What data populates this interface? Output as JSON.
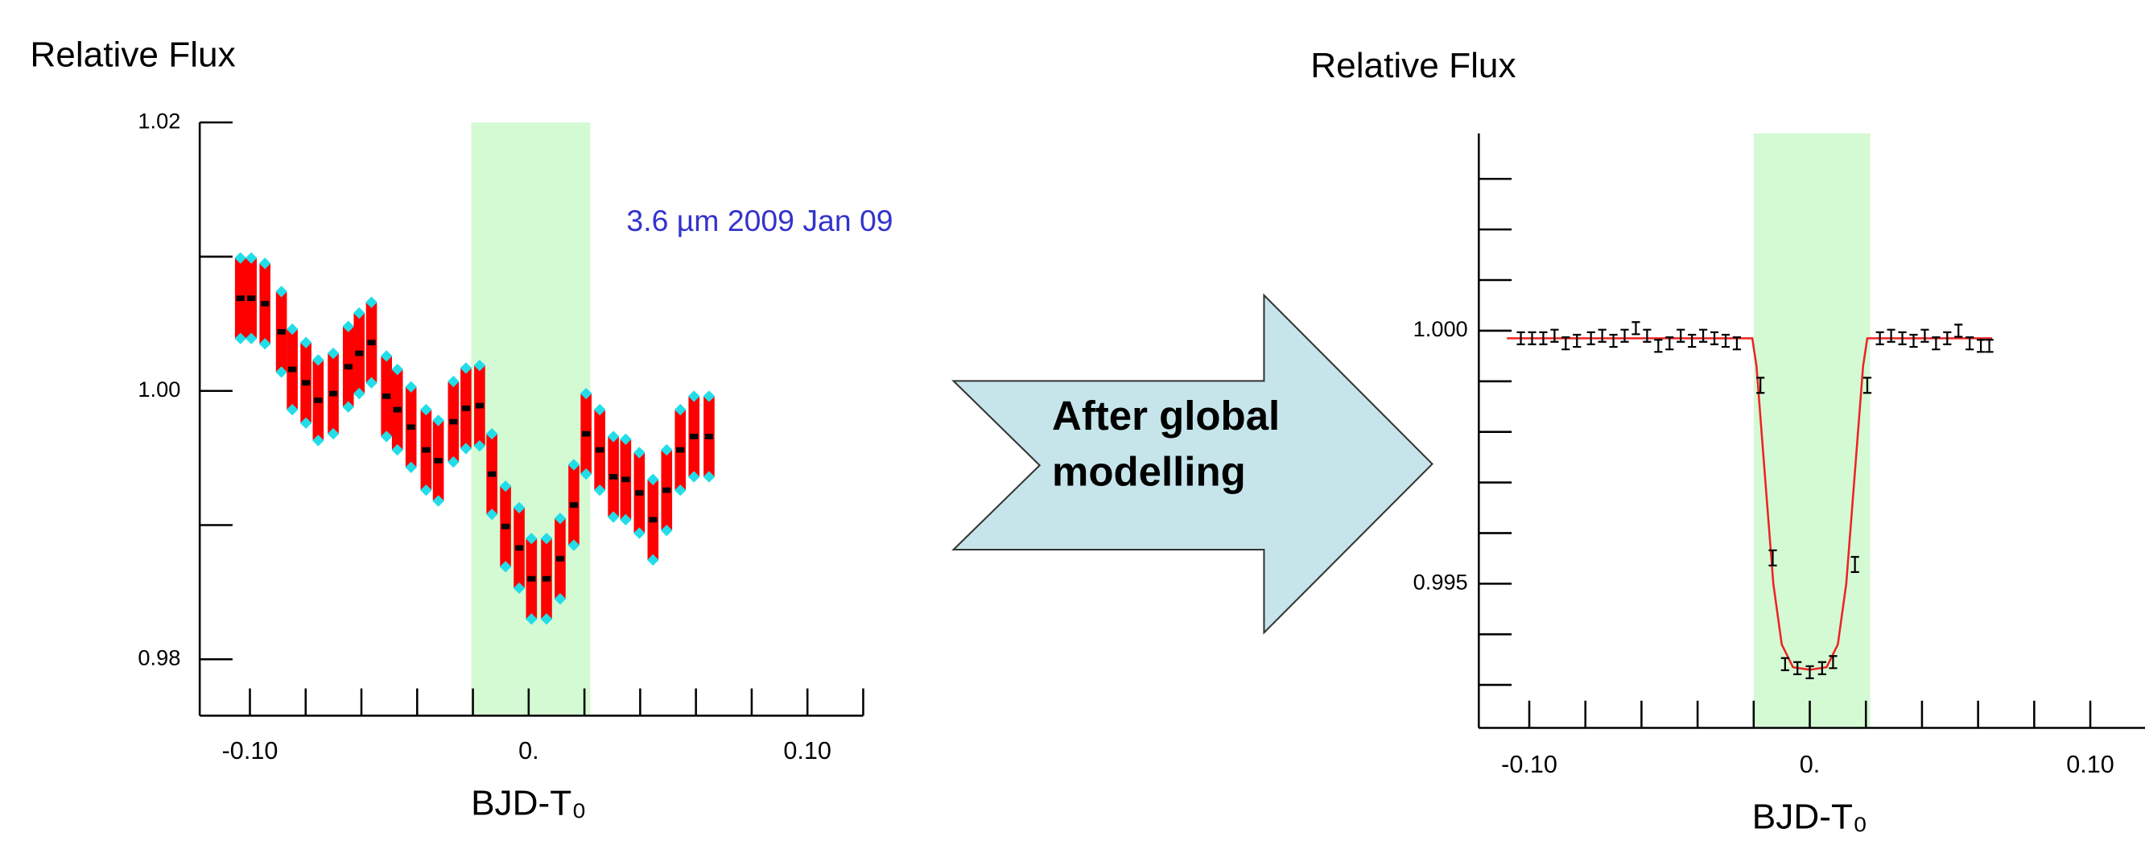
{
  "chart_data": [
    {
      "type": "scatter",
      "ylabel": "Relative Flux",
      "xlabel": "BJD-T₀",
      "annotation": "3.6 µm 2009 Jan 09",
      "annotation_color": "#3333cc",
      "xlim": [
        -0.118,
        0.12
      ],
      "ylim": [
        0.9758,
        1.02
      ],
      "xticks": [
        {
          "value": -0.1,
          "label": "-0.10"
        },
        {
          "value": 0,
          "label": "0."
        },
        {
          "value": 0.1,
          "label": "0.10"
        }
      ],
      "xminor": [
        -0.1,
        -0.08,
        -0.06,
        -0.04,
        -0.02,
        0,
        0.02,
        0.04,
        0.06,
        0.08,
        0.1,
        0.12
      ],
      "yticks": [
        0.98,
        {
          "value": 1,
          "label": "1.00"
        },
        1.02
      ],
      "yminor": [
        0.98,
        0.99,
        1,
        1.01,
        1.02
      ],
      "highlight_x": [
        -0.0206,
        0.0221
      ],
      "highlight_color": "#d4fad4",
      "series": [
        {
          "style": "band",
          "color": "#ff0000",
          "marker_color": "#22dde8",
          "x": [
            -0.1034,
            -0.0995,
            -0.0946,
            -0.0887,
            -0.0848,
            -0.0799,
            -0.0755,
            -0.0701,
            -0.0647,
            -0.0608,
            -0.0564,
            -0.051,
            -0.0471,
            -0.0422,
            -0.0368,
            -0.0324,
            -0.027,
            -0.0225,
            -0.0176,
            -0.0132,
            -0.0083,
            -0.0034,
            0.001,
            0.0064,
            0.0113,
            0.0162,
            0.0206,
            0.0255,
            0.0304,
            0.0348,
            0.0397,
            0.0446,
            0.0495,
            0.0544,
            0.0593,
            0.0647
          ],
          "values": [
            1.0069,
            1.0069,
            1.0065,
            1.0044,
            1.0016,
            1.0006,
            0.9993,
            0.9998,
            1.0018,
            1.0028,
            1.0036,
            0.9996,
            0.9986,
            0.9973,
            0.9956,
            0.9948,
            0.9977,
            0.9987,
            0.9989,
            0.9938,
            0.9899,
            0.9883,
            0.986,
            0.986,
            0.9875,
            0.9915,
            0.9968,
            0.9956,
            0.9936,
            0.9934,
            0.9924,
            0.9904,
            0.9926,
            0.9956,
            0.9966,
            0.9966
          ],
          "errors": [
            0.003,
            0.003,
            0.003,
            0.003,
            0.003,
            0.003,
            0.003,
            0.003,
            0.003,
            0.003,
            0.003,
            0.003,
            0.003,
            0.003,
            0.003,
            0.003,
            0.003,
            0.003,
            0.003,
            0.003,
            0.003,
            0.003,
            0.003,
            0.003,
            0.003,
            0.003,
            0.003,
            0.003,
            0.003,
            0.003,
            0.003,
            0.003,
            0.003,
            0.003,
            0.003,
            0.003
          ]
        }
      ]
    },
    {
      "type": "scatter",
      "ylabel": "Relative Flux",
      "xlabel": "BJD-T₀",
      "xlim": [
        -0.118,
        0.1195
      ],
      "ylim": [
        0.99215,
        1.0039
      ],
      "xticks": [
        {
          "value": -0.1,
          "label": "-0.10"
        },
        {
          "value": 0,
          "label": "0."
        },
        {
          "value": 0.1,
          "label": "0.10"
        }
      ],
      "xminor": [
        -0.1,
        -0.08,
        -0.06,
        -0.04,
        -0.02,
        0,
        0.02,
        0.04,
        0.06,
        0.08,
        0.1
      ],
      "yticks": [
        0.995,
        {
          "value": 1,
          "label": "1.000"
        }
      ],
      "yminor": [
        0.993,
        0.994,
        0.995,
        0.996,
        0.997,
        0.998,
        0.999,
        1,
        1.001,
        1.002,
        1.003
      ],
      "highlight_x": [
        -0.02,
        0.0215
      ],
      "highlight_color": "#d4fad4",
      "series": [
        {
          "style": "line",
          "color": "#ee2222",
          "x": [
            -0.108,
            -0.0205,
            -0.019,
            -0.0165,
            -0.013,
            -0.01,
            -0.006,
            0,
            0.006,
            0.01,
            0.013,
            0.0165,
            0.019,
            0.0205,
            0.065
          ],
          "values": [
            0.99985,
            0.99985,
            0.9993,
            0.9975,
            0.995,
            0.9938,
            0.99335,
            0.9933,
            0.99335,
            0.9938,
            0.995,
            0.9975,
            0.9993,
            0.99985,
            0.99985
          ]
        },
        {
          "style": "errorbar",
          "color": "#000000",
          "x": [
            -0.103,
            -0.099,
            -0.095,
            -0.091,
            -0.087,
            -0.083,
            -0.078,
            -0.074,
            -0.07,
            -0.066,
            -0.062,
            -0.058,
            -0.054,
            -0.05,
            -0.046,
            -0.042,
            -0.038,
            -0.034,
            -0.03,
            -0.026,
            -0.0176,
            -0.0132,
            -0.0088,
            -0.0044,
            0,
            0.0044,
            0.0083,
            0.0161,
            0.0205,
            0.025,
            0.029,
            0.033,
            0.037,
            0.041,
            0.045,
            0.049,
            0.053,
            0.057,
            0.061,
            0.064
          ],
          "values": [
            0.99985,
            0.99985,
            0.99985,
            0.9999,
            0.99975,
            0.9998,
            0.99985,
            0.9999,
            0.9998,
            0.9999,
            1.00005,
            0.9999,
            0.9997,
            0.99975,
            0.9999,
            0.9998,
            0.9999,
            0.99985,
            0.9998,
            0.99975,
            0.99892,
            0.99551,
            0.99341,
            0.99333,
            0.99325,
            0.99333,
            0.99345,
            0.99538,
            0.99892,
            0.99985,
            0.9999,
            0.99985,
            0.9998,
            0.9999,
            0.99975,
            0.99985,
            1.0,
            0.99975,
            0.9997,
            0.9997
          ],
          "errors": [
            0.00012,
            0.00012,
            0.00012,
            0.00012,
            0.00012,
            0.00012,
            0.00012,
            0.00012,
            0.00012,
            0.00012,
            0.00012,
            0.00012,
            0.00012,
            0.00012,
            0.00012,
            0.00012,
            0.00012,
            0.00012,
            0.00012,
            0.00012,
            0.00015,
            0.00015,
            0.00012,
            0.00012,
            0.00012,
            0.00012,
            0.00012,
            0.00015,
            0.00015,
            0.00012,
            0.00012,
            0.00012,
            0.00012,
            0.00012,
            0.00012,
            0.00012,
            0.00012,
            0.00012,
            0.00012,
            0.00012
          ]
        }
      ]
    }
  ],
  "arrow": {
    "lines": [
      "After global",
      "modelling"
    ]
  }
}
